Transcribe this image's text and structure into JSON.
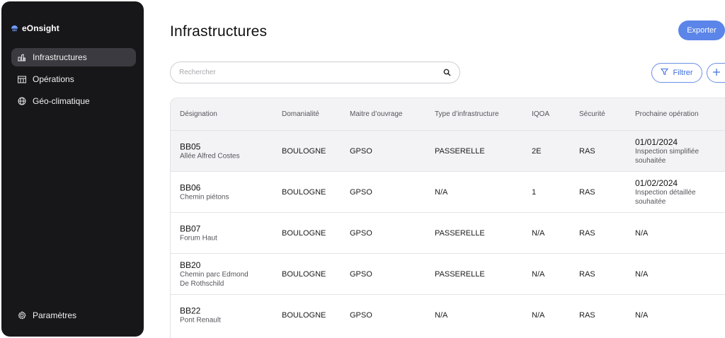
{
  "sidebar": {
    "brand": "eOnsight",
    "items": [
      {
        "label": "Infrastructures",
        "icon": "infrastructure-icon",
        "active": true
      },
      {
        "label": "Opérations",
        "icon": "calendar-icon",
        "active": false
      },
      {
        "label": "Géo-climatique",
        "icon": "globe-icon",
        "active": false
      }
    ],
    "settings": {
      "label": "Paramètres",
      "icon": "gear-icon"
    }
  },
  "header": {
    "title": "Infrastructures",
    "export_label": "Exporter"
  },
  "search": {
    "placeholder": "Rechercher",
    "value": ""
  },
  "toolbar": {
    "filter_label": "Filtrer",
    "add_icon": "plus-icon"
  },
  "table": {
    "columns": [
      "Désignation",
      "Domanialité",
      "Maitre d’ouvrage",
      "Type d’infrastructure",
      "IQOA",
      "Sécurité",
      "Prochaine opération"
    ],
    "rows": [
      {
        "code": "BB05",
        "name": [
          "Allée Alfred Costes"
        ],
        "domanialite": "BOULOGNE",
        "maitre": "GPSO",
        "type": "PASSERELLE",
        "iqoa": "2E",
        "securite": "RAS",
        "op_date": "01/01/2024",
        "op_desc": [
          "Inspection simplifiée",
          "souhaitée"
        ]
      },
      {
        "code": "BB06",
        "name": [
          "Chemin piétons"
        ],
        "domanialite": "BOULOGNE",
        "maitre": "GPSO",
        "type": "N/A",
        "iqoa": "1",
        "securite": "RAS",
        "op_date": "01/02/2024",
        "op_desc": [
          "Inspection détaillée",
          "souhaitée"
        ]
      },
      {
        "code": "BB07",
        "name": [
          "Forum Haut"
        ],
        "domanialite": "BOULOGNE",
        "maitre": "GPSO",
        "type": "PASSERELLE",
        "iqoa": "N/A",
        "securite": "RAS",
        "op_date": "N/A",
        "op_desc": []
      },
      {
        "code": "BB20",
        "name": [
          "Chemin parc Edmond",
          "De Rothschild"
        ],
        "domanialite": "BOULOGNE",
        "maitre": "GPSO",
        "type": "PASSERELLE",
        "iqoa": "N/A",
        "securite": "RAS",
        "op_date": "N/A",
        "op_desc": []
      },
      {
        "code": "BB22",
        "name": [
          "Pont Renault"
        ],
        "domanialite": "BOULOGNE",
        "maitre": "GPSO",
        "type": "N/A",
        "iqoa": "N/A",
        "securite": "RAS",
        "op_date": "N/A",
        "op_desc": []
      }
    ]
  },
  "colors": {
    "accent": "#5b85e8",
    "sidebar_bg": "#17171a",
    "active_item": "#3a3a40"
  }
}
